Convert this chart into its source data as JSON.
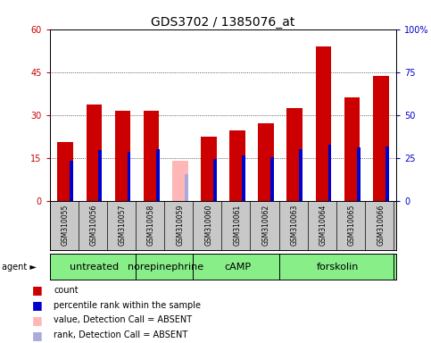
{
  "title": "GDS3702 / 1385076_at",
  "samples": [
    "GSM310055",
    "GSM310056",
    "GSM310057",
    "GSM310058",
    "GSM310059",
    "GSM310060",
    "GSM310061",
    "GSM310062",
    "GSM310063",
    "GSM310064",
    "GSM310065",
    "GSM310066"
  ],
  "count_values": [
    20.5,
    33.5,
    31.5,
    31.5,
    null,
    22.5,
    24.5,
    27.0,
    32.5,
    54.0,
    36.0,
    43.5
  ],
  "absent_count_values": [
    null,
    null,
    null,
    null,
    14.0,
    null,
    null,
    null,
    null,
    null,
    null,
    null
  ],
  "percentile_values": [
    23.0,
    29.5,
    28.5,
    30.0,
    null,
    24.5,
    26.5,
    25.5,
    30.0,
    32.5,
    31.0,
    31.5
  ],
  "absent_percentile_values": [
    null,
    null,
    null,
    null,
    15.5,
    null,
    null,
    null,
    null,
    null,
    null,
    null
  ],
  "agents": [
    {
      "label": "untreated",
      "start": 0,
      "end": 3
    },
    {
      "label": "norepinephrine",
      "start": 3,
      "end": 5
    },
    {
      "label": "cAMP",
      "start": 5,
      "end": 8
    },
    {
      "label": "forskolin",
      "start": 8,
      "end": 12
    }
  ],
  "agent_boundaries": [
    0,
    3,
    5,
    8,
    12
  ],
  "ylim_left": [
    0,
    60
  ],
  "ylim_right": [
    0,
    100
  ],
  "yticks_left": [
    0,
    15,
    30,
    45,
    60
  ],
  "yticks_right": [
    0,
    25,
    50,
    75,
    100
  ],
  "ytick_labels_right": [
    "0",
    "25",
    "50",
    "75",
    "100%"
  ],
  "bar_color_red": "#CC0000",
  "bar_color_pink": "#FFB6B6",
  "bar_color_blue": "#0000CC",
  "bar_color_lightblue": "#AAAADD",
  "agent_color": "#88EE88",
  "xticklabel_area_color": "#C8C8C8",
  "background_color": "#FFFFFF",
  "title_fontsize": 10,
  "tick_fontsize": 7,
  "sample_fontsize": 5.5,
  "agent_fontsize": 8,
  "legend_fontsize": 7
}
